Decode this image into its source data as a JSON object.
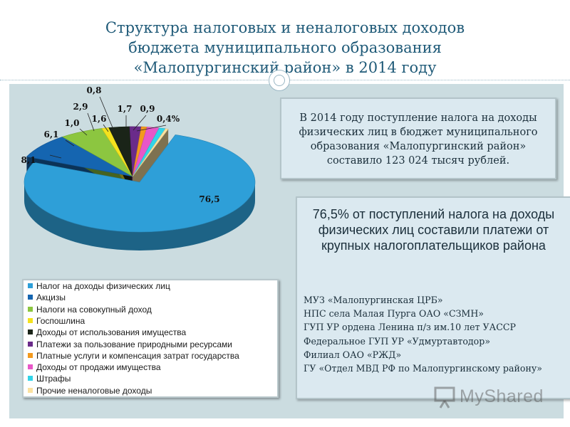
{
  "title": {
    "line1": "Структура налоговых и неналоговых доходов",
    "line2": "бюджета муниципального образования",
    "line3": "«Малопургинский район» в 2014 году"
  },
  "colors": {
    "title": "#1f5a78",
    "panel": "#cbdce0",
    "box": "#dbe9f0"
  },
  "chart_data": {
    "type": "pie",
    "labels": [
      "Налог на доходы физических лиц",
      "Акцизы",
      "Налоги на совокупный доход",
      "Госпошлина",
      "Доходы от использования имущества",
      "Платежи за пользование природными ресурсами",
      "Платные услуги и компенсация затрат государства",
      "Доходы от продажи имущества",
      "Штрафы",
      "Прочие неналоговые доходы"
    ],
    "values": [
      76.5,
      8.1,
      6.1,
      1.0,
      2.9,
      1.6,
      0.8,
      1.7,
      0.9,
      0.4
    ],
    "data_labels": [
      "76,5",
      "8,1",
      "6,1",
      "1,0",
      "2,9",
      "1,6",
      "0,8",
      "1,7",
      "0,9",
      "0,4%"
    ],
    "colors": [
      "#2e9fd8",
      "#1565b0",
      "#8cc640",
      "#f4e21e",
      "#1a2418",
      "#6a2b8a",
      "#f39a1e",
      "#e857c8",
      "#31d4e8",
      "#fbe2a0"
    ],
    "legend_position": "bottom-left",
    "style": "3d"
  },
  "info_box_1": {
    "text": "В 2014 году поступление налога на доходы физических лиц в бюджет муниципального образования «Малопургинский район» составило 123 024 тысяч рублей."
  },
  "info_box_2": {
    "heading": "76,5% от поступлений налога на доходы физических лиц составили платежи от крупных налогоплательщиков района",
    "items": [
      "МУЗ «Малопургинская ЦРБ»",
      "НПС села Малая Пурга ОАО «СЗМН»",
      "ГУП УР ордена Ленина п/з им.10 лет УАССР",
      "Федеральное ГУП УР «Удмуртавтодор»",
      "Филиал ОАО «РЖД»",
      "ГУ «Отдел МВД РФ по Малопургинскому району»"
    ]
  },
  "watermark": {
    "text": "MyShared",
    "icon": "presentation-board-icon"
  }
}
